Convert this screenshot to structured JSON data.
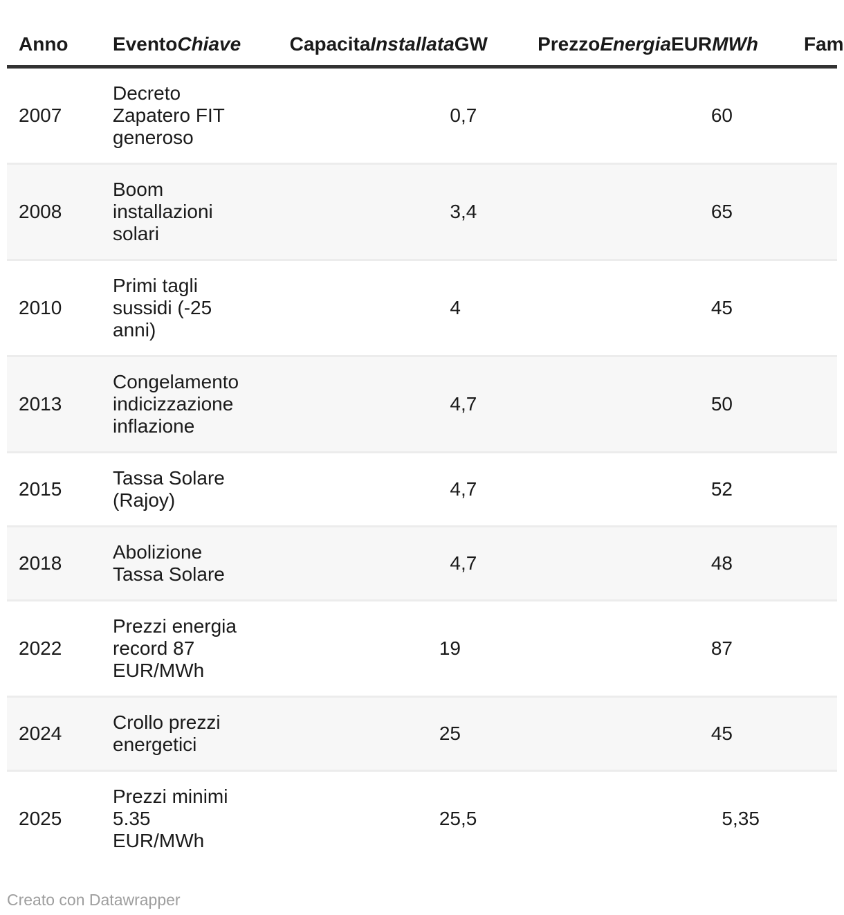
{
  "header": {
    "anno": "Anno",
    "evento": {
      "p1": "Evento",
      "p2": "Chiave"
    },
    "capacita": {
      "p1": "Capacita",
      "p2": "Installata",
      "p3": "GW"
    },
    "prezzo": {
      "p1": "Prezzo",
      "p2": "Energia",
      "p3": "EUR",
      "p4": "MWh"
    },
    "extra": "Fam"
  },
  "table": {
    "rows": [
      {
        "year": "2007",
        "event_lines": [
          "Decreto",
          "Zapatero FIT",
          "generoso"
        ],
        "capacity_int": "0",
        "capacity_dec": ",7",
        "price_int": "60",
        "price_dec": ""
      },
      {
        "year": "2008",
        "event_lines": [
          "Boom",
          "installazioni",
          "solari"
        ],
        "capacity_int": "3",
        "capacity_dec": ",4",
        "price_int": "65",
        "price_dec": ""
      },
      {
        "year": "2010",
        "event_lines": [
          "Primi tagli",
          "sussidi (-25",
          "anni)"
        ],
        "capacity_int": "4",
        "capacity_dec": "",
        "price_int": "45",
        "price_dec": ""
      },
      {
        "year": "2013",
        "event_lines": [
          "Congelamento",
          "indicizzazione",
          "inflazione"
        ],
        "capacity_int": "4",
        "capacity_dec": ",7",
        "price_int": "50",
        "price_dec": ""
      },
      {
        "year": "2015",
        "event_lines": [
          "Tassa Solare",
          "(Rajoy)"
        ],
        "capacity_int": "4",
        "capacity_dec": ",7",
        "price_int": "52",
        "price_dec": ""
      },
      {
        "year": "2018",
        "event_lines": [
          "Abolizione",
          "Tassa Solare"
        ],
        "capacity_int": "4",
        "capacity_dec": ",7",
        "price_int": "48",
        "price_dec": ""
      },
      {
        "year": "2022",
        "event_lines": [
          "Prezzi energia",
          "record 87",
          "EUR/MWh"
        ],
        "capacity_int": "19",
        "capacity_dec": "",
        "price_int": "87",
        "price_dec": ""
      },
      {
        "year": "2024",
        "event_lines": [
          "Crollo prezzi",
          "energetici"
        ],
        "capacity_int": "25",
        "capacity_dec": "",
        "price_int": "45",
        "price_dec": ""
      },
      {
        "year": "2025",
        "event_lines": [
          "Prezzi minimi",
          "5.35",
          "EUR/MWh"
        ],
        "capacity_int": "25",
        "capacity_dec": ",5",
        "price_int": "5",
        "price_dec": ",35"
      }
    ]
  },
  "footer": {
    "credit": "Creato con Datawrapper"
  },
  "colors": {
    "text": "#1a1a1a",
    "zebra_row": "#f7f7f7",
    "row_border": "#ececec",
    "header_rule": "#333333",
    "footer_text": "#9e9e9e"
  },
  "chart_data": {
    "type": "table",
    "columns": [
      "Anno",
      "EventoChiave",
      "CapacitaInstallataGW",
      "PrezzoEnergiaEURMWh",
      "Fam"
    ],
    "rows": [
      [
        2007,
        "Decreto Zapatero FIT generoso",
        0.7,
        60
      ],
      [
        2008,
        "Boom installazioni solari",
        3.4,
        65
      ],
      [
        2010,
        "Primi tagli sussidi (-25 anni)",
        4,
        45
      ],
      [
        2013,
        "Congelamento indicizzazione inflazione",
        4.7,
        50
      ],
      [
        2015,
        "Tassa Solare (Rajoy)",
        4.7,
        52
      ],
      [
        2018,
        "Abolizione Tassa Solare",
        4.7,
        48
      ],
      [
        2022,
        "Prezzi energia record 87 EUR/MWh",
        19,
        87
      ],
      [
        2024,
        "Crollo prezzi energetici",
        25,
        45
      ],
      [
        2025,
        "Prezzi minimi 5.35 EUR/MWh",
        25.5,
        5.35
      ]
    ],
    "notes": {
      "decimal_separator": "comma",
      "number_alignment": "decimal-aligned right",
      "zebra_striping": true,
      "last_column_truncated": true,
      "credit": "Creato con Datawrapper"
    }
  }
}
